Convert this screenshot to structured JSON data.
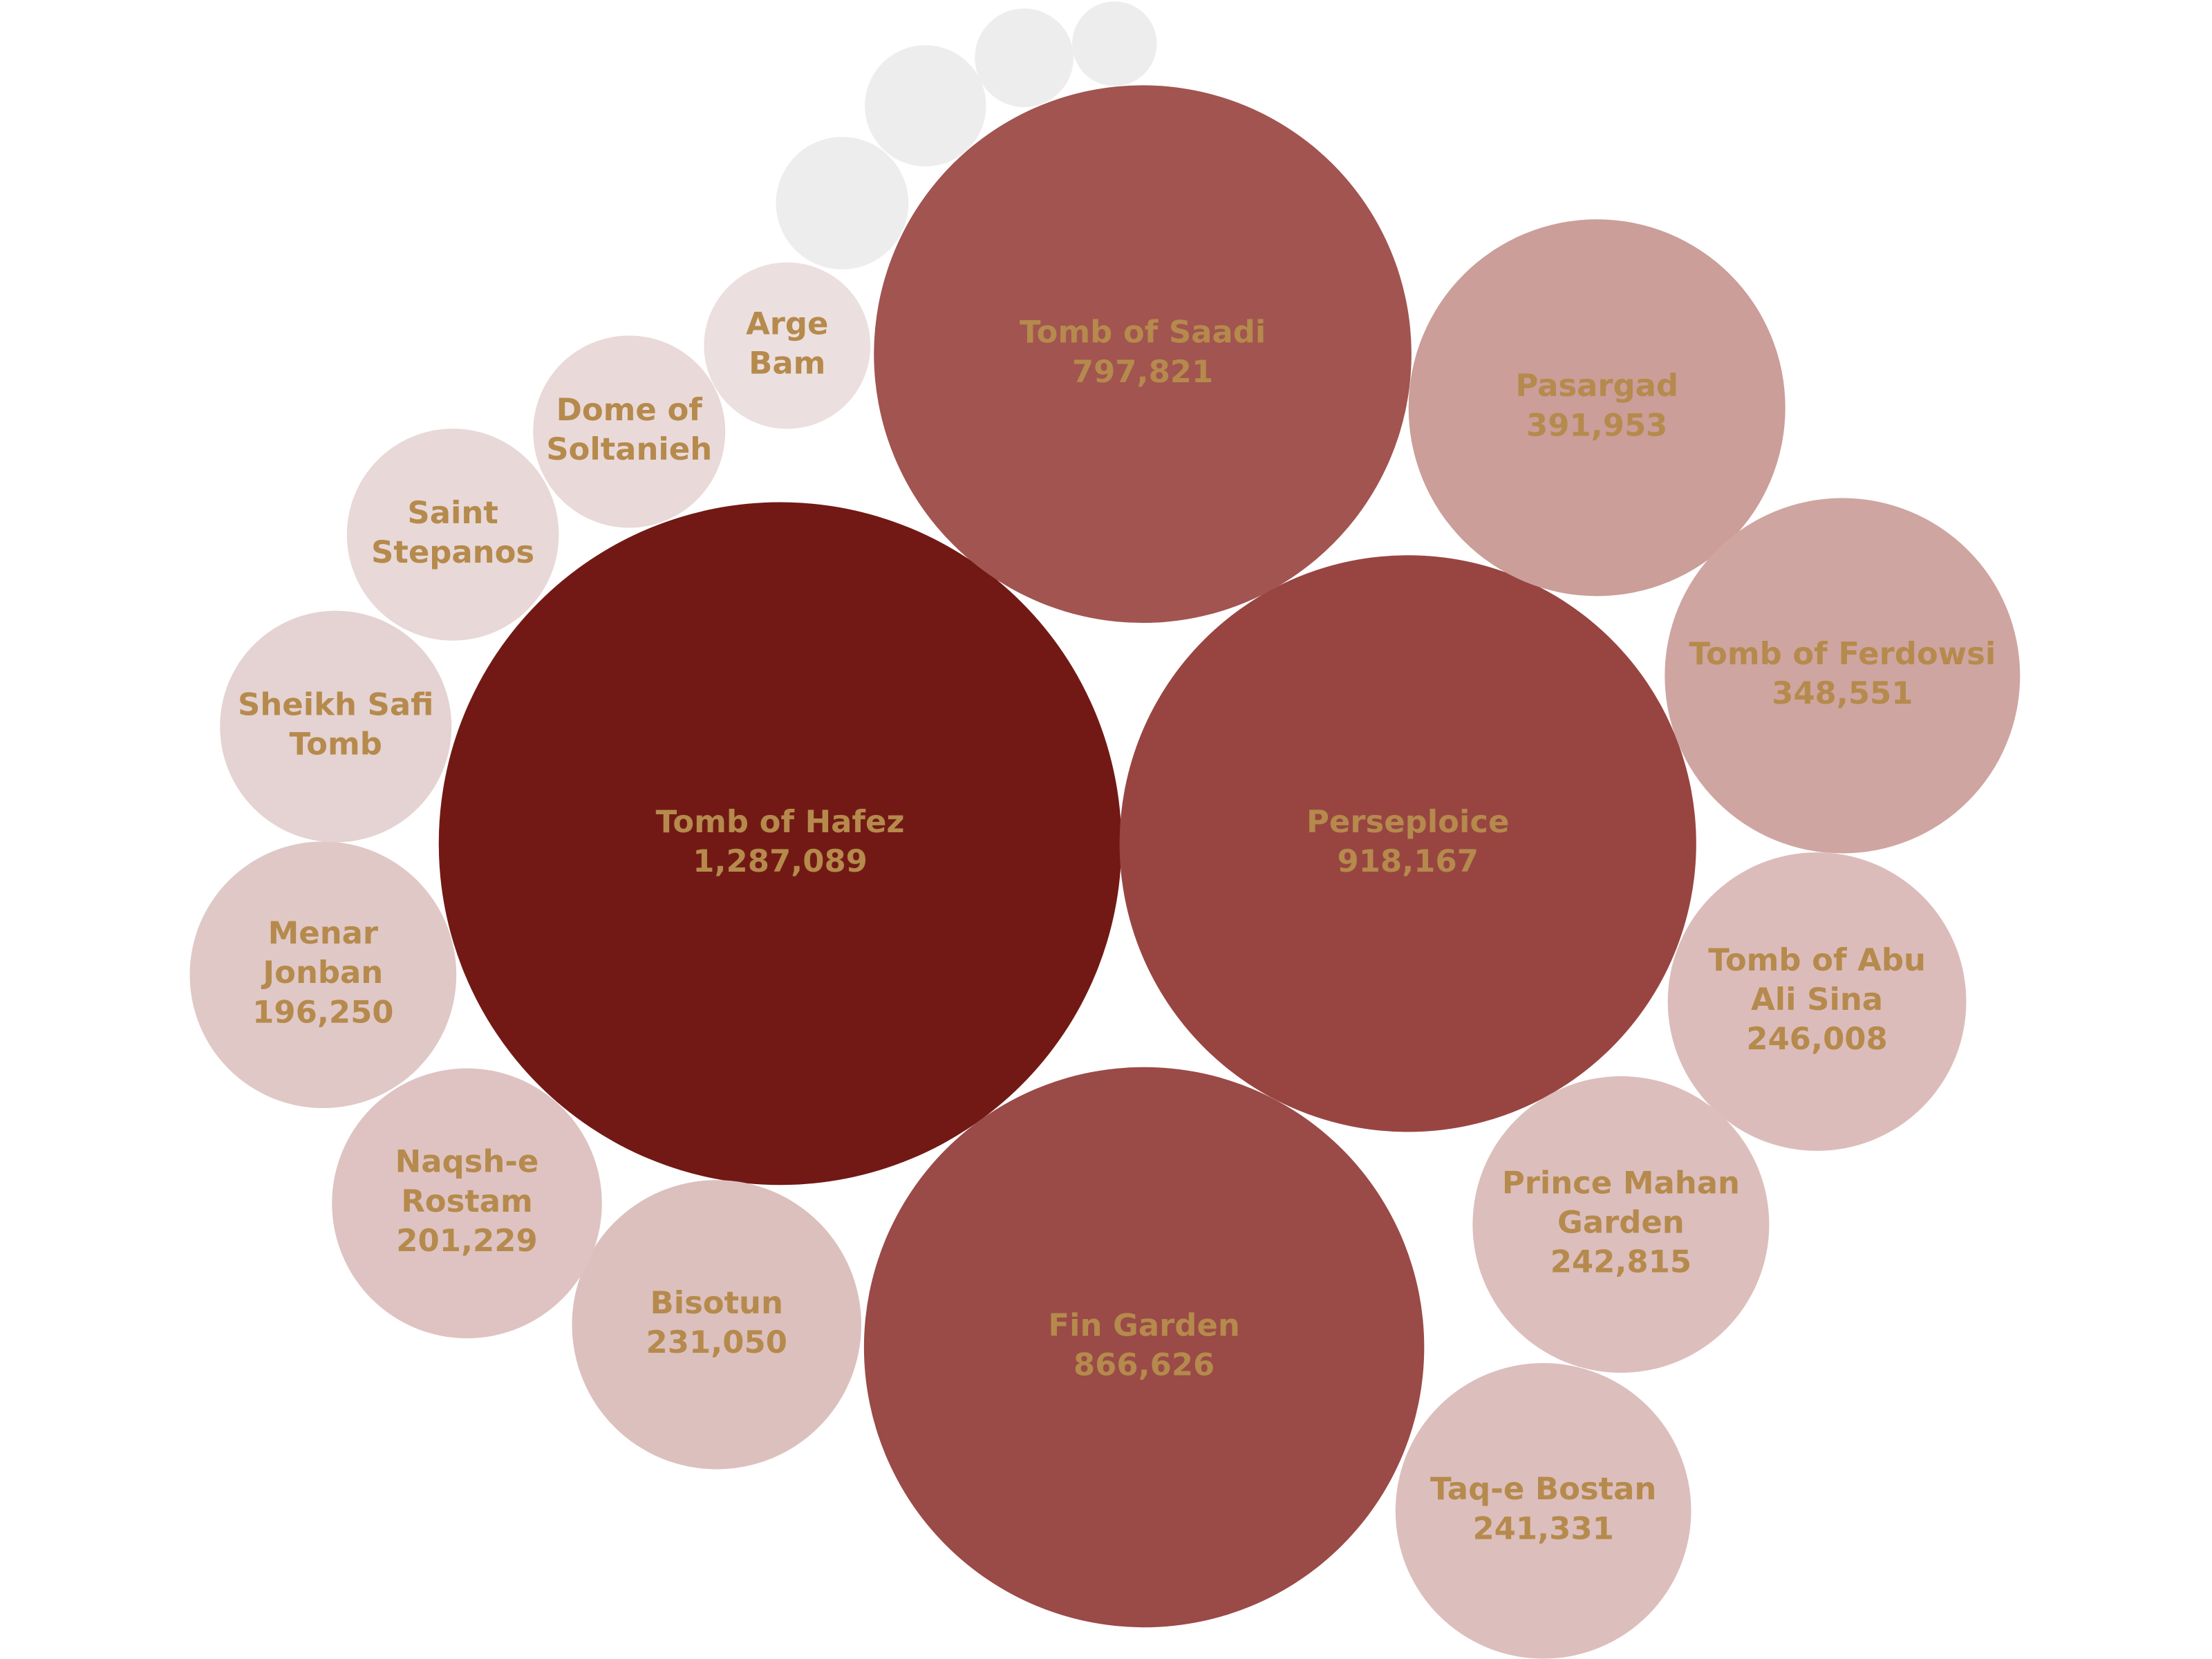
{
  "chart_data": {
    "type": "bubble",
    "categories": [
      "Tomb of Hafez",
      "Perseploice",
      "Fin Garden",
      "Tomb of Saadi",
      "Pasargad",
      "Tomb of Ferdowsi",
      "Tomb of Abu Ali Sina",
      "Prince Mahan Garden",
      "Taq-e Bostan",
      "Bisotun",
      "Naqsh-e Rostam",
      "Menar Jonban",
      "Sheikh Safi Tomb",
      "Saint Stepanos",
      "Dome of Soltanieh",
      "Arge Bam",
      null,
      null,
      null,
      null
    ],
    "values": [
      1287089,
      918167,
      866626,
      797821,
      391953,
      348551,
      246008,
      242815,
      241331,
      231050,
      201229,
      196250,
      148000,
      124000,
      102000,
      76500,
      48500,
      40600,
      26900,
      19800
    ],
    "value_labels": [
      "1,287,089",
      "918,167",
      "866,626",
      "797,821",
      "391,953",
      "348,551",
      "246,008",
      "242,815",
      "241,331",
      "231,050",
      "201,229",
      "196,250",
      null,
      null,
      null,
      null,
      null,
      null,
      null,
      null
    ],
    "colors": [
      "#721915",
      "#984542",
      "#9a4a47",
      "#a25450",
      "#cb9e99",
      "#cfa5a1",
      "#dcbcba",
      "#dcbebc",
      "#dcbebc",
      "#dcc0be",
      "#dec3c2",
      "#e0c8c7",
      "#e5d2d2",
      "#e8d8d8",
      "#ead9d9",
      "#ecdfdf",
      "#eeeded",
      "#eeeded",
      "#eeeded",
      "#eeeded"
    ],
    "label_color": "#b58a4c"
  }
}
